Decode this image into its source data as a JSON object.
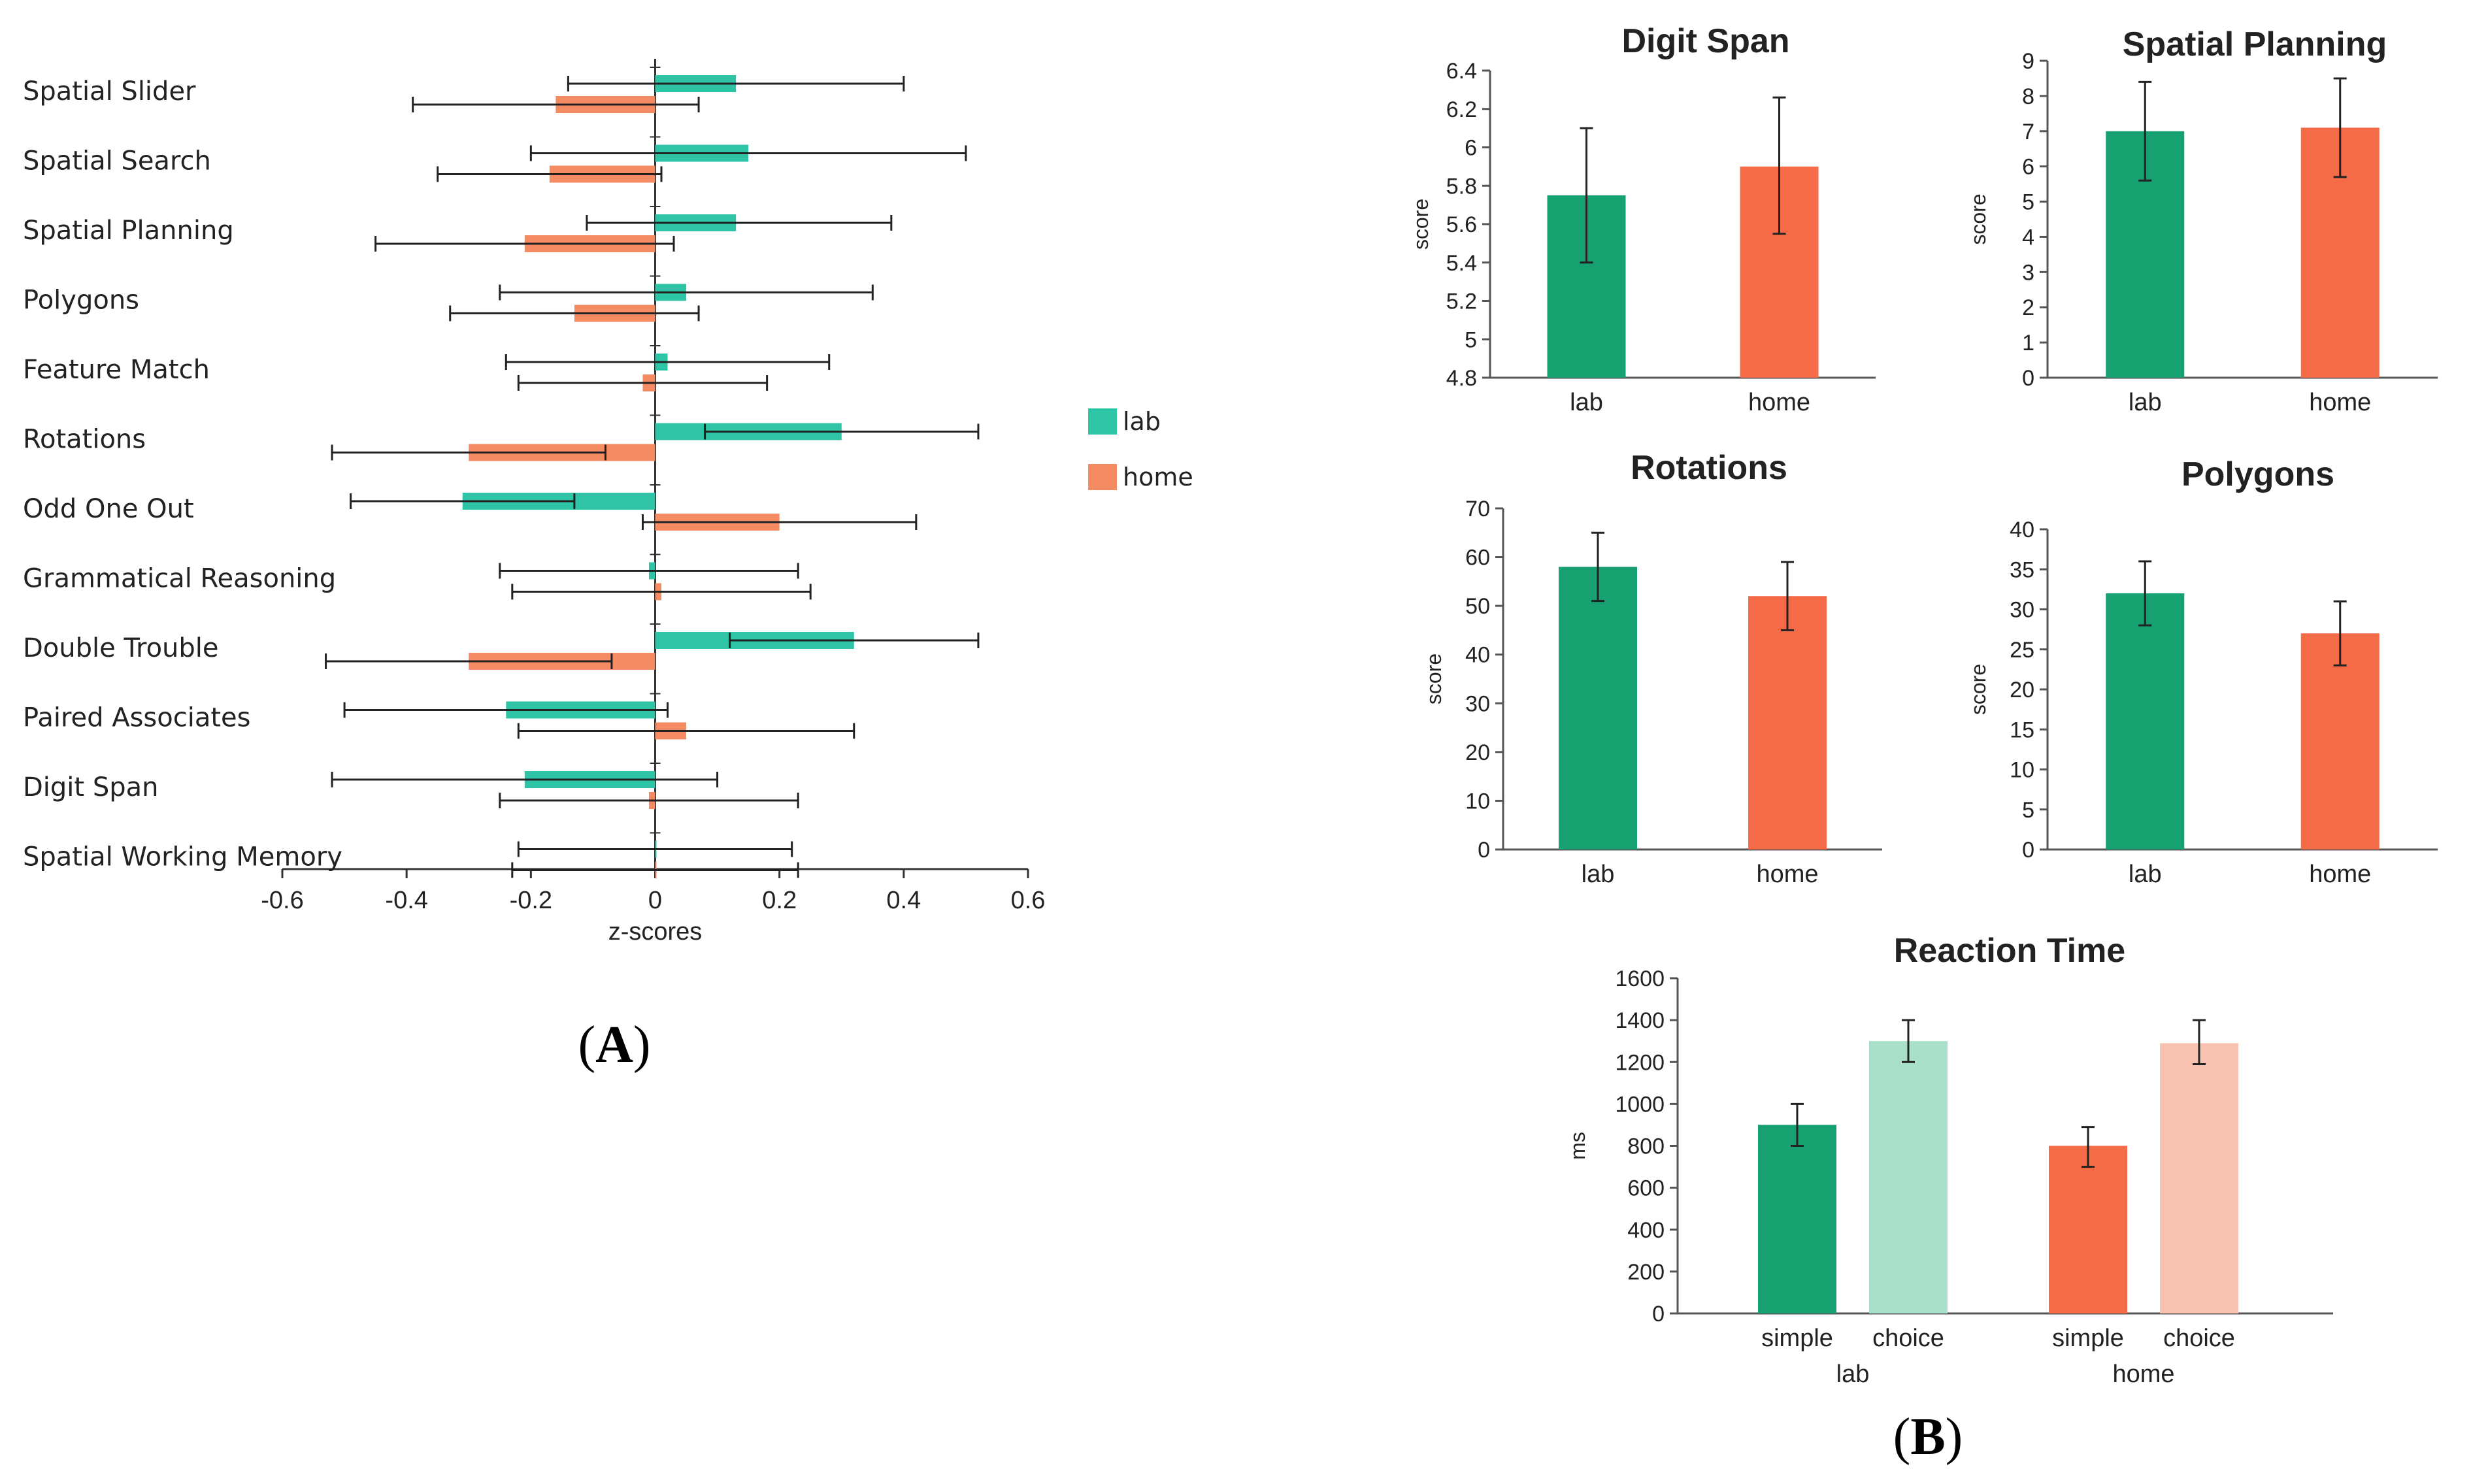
{
  "panel_labels": {
    "a": "(A)",
    "b": "(B)",
    "a_letter": "A",
    "b_letter": "B"
  },
  "colors": {
    "lab_z": "#2ec4a5",
    "home_z": "#f58b62",
    "lab": "#17a070",
    "home": "#f56b47",
    "lab_light": "#a8dfc9",
    "home_light": "#f8c2b0",
    "axis": "#555555",
    "error": "#222222"
  },
  "chart_data": [
    {
      "id": "zscores",
      "type": "bar",
      "orientation": "horizontal",
      "title": "",
      "xlabel": "z-scores",
      "ylabel": "",
      "xlim": [
        -0.6,
        0.6
      ],
      "xticks": [
        "-0.6",
        "-0.4",
        "-0.2",
        "0",
        "0.2",
        "0.4",
        "0.6"
      ],
      "categories": [
        "Spatial Slider",
        "Spatial Search",
        "Spatial Planning",
        "Polygons",
        "Feature Match",
        "Rotations",
        "Odd One Out",
        "Grammatical Reasoning",
        "Double Trouble",
        "Paired Associates",
        "Digit Span",
        "Spatial Working Memory"
      ],
      "series": [
        {
          "name": "lab",
          "values": [
            0.13,
            0.15,
            0.13,
            0.05,
            0.02,
            0.3,
            -0.31,
            -0.01,
            0.32,
            -0.24,
            -0.21,
            0.0
          ],
          "err_low": [
            -0.14,
            -0.2,
            -0.11,
            -0.25,
            -0.24,
            0.08,
            -0.49,
            -0.25,
            0.12,
            -0.5,
            -0.52,
            -0.22
          ],
          "err_high": [
            0.4,
            0.5,
            0.38,
            0.35,
            0.28,
            0.52,
            -0.13,
            0.23,
            0.52,
            0.02,
            0.1,
            0.22
          ]
        },
        {
          "name": "home",
          "values": [
            -0.16,
            -0.17,
            -0.21,
            -0.13,
            -0.02,
            -0.3,
            0.2,
            0.01,
            -0.3,
            0.05,
            -0.01,
            0.0
          ],
          "err_low": [
            -0.39,
            -0.35,
            -0.45,
            -0.33,
            -0.22,
            -0.52,
            -0.02,
            -0.23,
            -0.53,
            -0.22,
            -0.25,
            -0.23
          ],
          "err_high": [
            0.07,
            0.01,
            0.03,
            0.07,
            0.18,
            -0.08,
            0.42,
            0.25,
            -0.07,
            0.32,
            0.23,
            0.23
          ]
        }
      ],
      "legend": {
        "position": "right",
        "entries": [
          "lab",
          "home"
        ]
      }
    },
    {
      "id": "digit-span",
      "type": "bar",
      "title": "Digit Span",
      "ylabel": "score",
      "categories": [
        "lab",
        "home"
      ],
      "values": [
        5.75,
        5.9
      ],
      "err_low": [
        5.4,
        5.55
      ],
      "err_high": [
        6.1,
        6.26
      ],
      "ylim": [
        4.8,
        6.4
      ],
      "yticks": [
        "4.8",
        "5",
        "5.2",
        "5.4",
        "5.6",
        "5.8",
        "6",
        "6.2",
        "6.4"
      ]
    },
    {
      "id": "spatial-planning",
      "type": "bar",
      "title": "Spatial Planning",
      "ylabel": "score",
      "categories": [
        "lab",
        "home"
      ],
      "values": [
        7.0,
        7.1
      ],
      "err_low": [
        5.6,
        5.7
      ],
      "err_high": [
        8.4,
        8.5
      ],
      "ylim": [
        0,
        9
      ],
      "yticks": [
        "0",
        "1",
        "2",
        "3",
        "4",
        "5",
        "6",
        "7",
        "8",
        "9"
      ]
    },
    {
      "id": "rotations",
      "type": "bar",
      "title": "Rotations",
      "ylabel": "score",
      "categories": [
        "lab",
        "home"
      ],
      "values": [
        58,
        52
      ],
      "err_low": [
        51,
        45
      ],
      "err_high": [
        65,
        59
      ],
      "ylim": [
        0,
        70
      ],
      "yticks": [
        "0",
        "10",
        "20",
        "30",
        "40",
        "50",
        "60",
        "70"
      ]
    },
    {
      "id": "polygons",
      "type": "bar",
      "title": "Polygons",
      "ylabel": "score",
      "categories": [
        "lab",
        "home"
      ],
      "values": [
        32,
        27
      ],
      "err_low": [
        28,
        23
      ],
      "err_high": [
        36,
        31
      ],
      "ylim": [
        0,
        40
      ],
      "yticks": [
        "0",
        "5",
        "10",
        "15",
        "20",
        "25",
        "30",
        "35",
        "40"
      ]
    },
    {
      "id": "reaction-time",
      "type": "bar",
      "title": "Reaction Time",
      "ylabel": "ms",
      "groups": [
        "lab",
        "home"
      ],
      "subcategories": [
        "simple",
        "choice"
      ],
      "series": [
        {
          "name": "lab",
          "values": [
            900,
            1300
          ],
          "err_low": [
            800,
            1200
          ],
          "err_high": [
            1000,
            1400
          ]
        },
        {
          "name": "home",
          "values": [
            800,
            1290
          ],
          "err_low": [
            700,
            1190
          ],
          "err_high": [
            890,
            1400
          ]
        }
      ],
      "ylim": [
        0,
        1600
      ],
      "yticks": [
        "0",
        "200",
        "400",
        "600",
        "800",
        "1000",
        "1200",
        "1400",
        "1600"
      ]
    }
  ]
}
